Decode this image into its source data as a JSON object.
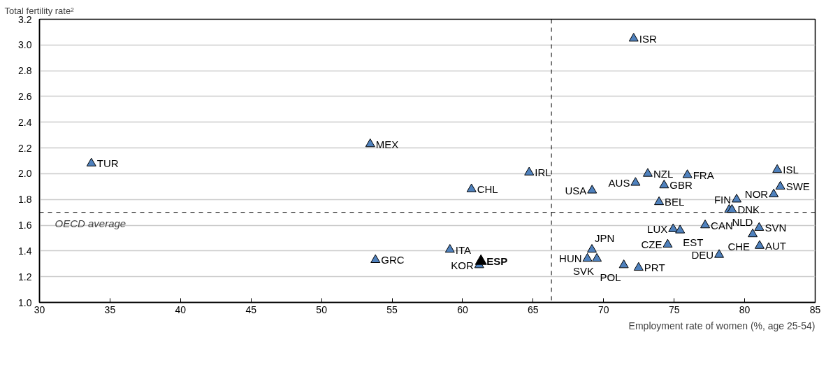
{
  "chart_data": {
    "type": "scatter",
    "xlabel": "Employment rate of women (%, age 25-54)",
    "ylabel": "Total fertility rate²",
    "series": [
      {
        "color": "#4f81bd",
        "x": [
          33.68,
          53.45,
          53.82,
          59.1,
          60.63,
          64.72,
          61.18,
          72.13,
          73.13,
          75.94,
          72.26,
          69.18,
          74.29,
          73.93,
          82.31,
          82.53,
          82.06,
          79.43,
          78.9,
          79.1,
          77.2,
          74.93,
          75.42,
          81.03,
          80.57,
          81.06,
          74.54,
          78.19,
          69.17,
          68.85,
          69.52,
          71.43,
          72.48
        ],
        "values": [
          2.08,
          2.23,
          1.33,
          1.41,
          1.88,
          2.01,
          1.29,
          3.05,
          2.0,
          1.99,
          1.93,
          1.87,
          1.91,
          1.78,
          2.03,
          1.9,
          1.84,
          1.8,
          1.72,
          1.72,
          1.6,
          1.57,
          1.56,
          1.58,
          1.53,
          1.44,
          1.45,
          1.37,
          1.41,
          1.34,
          1.34,
          1.29,
          1.27
        ]
      },
      {
        "color": "#000000",
        "x": [
          61.3
        ],
        "values": [
          1.32
        ]
      }
    ],
    "annotations": [
      {
        "text": "TUR",
        "x": 33.68,
        "y": 2.08
      },
      {
        "text": "MEX",
        "x": 53.45,
        "y": 2.23
      },
      {
        "text": "GRC",
        "x": 53.82,
        "y": 1.33
      },
      {
        "text": "ITA",
        "x": 59.1,
        "y": 1.41
      },
      {
        "text": "CHL",
        "x": 60.63,
        "y": 1.88
      },
      {
        "text": "IRL",
        "x": 64.72,
        "y": 2.01
      },
      {
        "text": "ESP",
        "x": 61.3,
        "y": 1.32
      },
      {
        "text": "KOR",
        "x": 61.18,
        "y": 1.29
      },
      {
        "text": "ISR",
        "x": 72.13,
        "y": 3.05
      },
      {
        "text": "NZL",
        "x": 73.13,
        "y": 2.0
      },
      {
        "text": "FRA",
        "x": 75.94,
        "y": 1.99
      },
      {
        "text": "AUS",
        "x": 72.26,
        "y": 1.93
      },
      {
        "text": "USA",
        "x": 69.18,
        "y": 1.87
      },
      {
        "text": "GBR",
        "x": 74.29,
        "y": 1.91
      },
      {
        "text": "BEL",
        "x": 73.93,
        "y": 1.78
      },
      {
        "text": "ISL",
        "x": 82.31,
        "y": 2.03
      },
      {
        "text": "SWE",
        "x": 82.53,
        "y": 1.9
      },
      {
        "text": "NOR",
        "x": 82.06,
        "y": 1.84
      },
      {
        "text": "FIN",
        "x": 79.43,
        "y": 1.8
      },
      {
        "text": "NLD",
        "x": 78.9,
        "y": 1.72
      },
      {
        "text": "DNK",
        "x": 79.1,
        "y": 1.72
      },
      {
        "text": "CAN",
        "x": 77.2,
        "y": 1.6
      },
      {
        "text": "LUX",
        "x": 74.93,
        "y": 1.57
      },
      {
        "text": "EST",
        "x": 75.42,
        "y": 1.56
      },
      {
        "text": "SVN",
        "x": 81.03,
        "y": 1.58
      },
      {
        "text": "CHE",
        "x": 80.57,
        "y": 1.53
      },
      {
        "text": "AUT",
        "x": 81.06,
        "y": 1.44
      },
      {
        "text": "CZE",
        "x": 74.54,
        "y": 1.45
      },
      {
        "text": "DEU",
        "x": 78.19,
        "y": 1.37
      },
      {
        "text": "JPN",
        "x": 69.17,
        "y": 1.41
      },
      {
        "text": "HUN",
        "x": 68.85,
        "y": 1.34
      },
      {
        "text": "SVK",
        "x": 69.52,
        "y": 1.34
      },
      {
        "text": "POL",
        "x": 71.43,
        "y": 1.29
      },
      {
        "text": "PRT",
        "x": 72.48,
        "y": 1.27
      }
    ],
    "ref_lines": [
      {
        "axis": "y",
        "value": 1.7,
        "label": "OECD average",
        "line_style": "dashed"
      },
      {
        "axis": "x",
        "value": 66.3,
        "line_style": "dashed"
      }
    ],
    "xlim": [
      30,
      85
    ],
    "xticks": [
      30,
      35,
      40,
      45,
      50,
      55,
      60,
      65,
      70,
      75,
      80,
      85
    ],
    "ylim": [
      1.0,
      3.2
    ],
    "yticks": [
      {
        "value": 1.0,
        "label": "1.0"
      },
      {
        "value": 1.2,
        "label": "1.2"
      },
      {
        "value": 1.4,
        "label": "1.4"
      },
      {
        "value": 1.6,
        "label": "1.6"
      },
      {
        "value": 1.8,
        "label": "1.8"
      },
      {
        "value": 2.0,
        "label": "2.0"
      },
      {
        "value": 2.2,
        "label": "2.2"
      },
      {
        "value": 2.4,
        "label": "2.4"
      },
      {
        "value": 2.6,
        "label": "2.6"
      },
      {
        "value": 2.8,
        "label": "2.8"
      },
      {
        "value": 3.0,
        "label": "3.0"
      },
      {
        "value": 3.2,
        "label": "3.2"
      }
    ],
    "grid": "y",
    "marker": "triangle"
  }
}
